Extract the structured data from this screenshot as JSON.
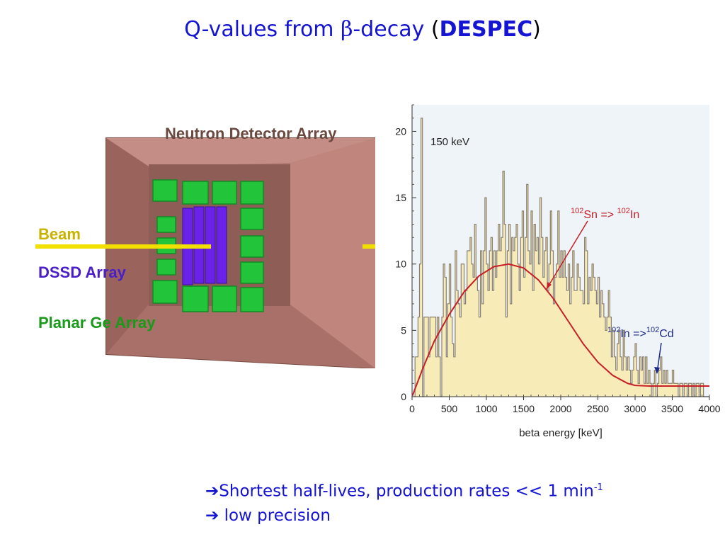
{
  "title": {
    "prefix": "Q-values from ",
    "beta": "β",
    "suffix": "-decay ",
    "open": "(",
    "bold": "DESPEC",
    "close": ")"
  },
  "detector": {
    "label_neutron": "Neutron Detector Array",
    "label_beam": "Beam",
    "label_dssd": "DSSD Array",
    "label_ge": "Planar Ge Array",
    "colors": {
      "box": "#b07a72",
      "ge": "#22c43a",
      "dssd": "#6b22e8",
      "beam": "#f2e000",
      "neutron_text": "#6a4a40",
      "dssd_text": "#4a1ec8",
      "ge_text": "#1a9a1a"
    }
  },
  "chart_data": {
    "type": "bar",
    "xlabel": "beta energy [keV]",
    "ylabel": "",
    "xlim": [
      0,
      4000
    ],
    "ylim": [
      0,
      22
    ],
    "xticks": [
      0,
      500,
      1000,
      1500,
      2000,
      2500,
      3000,
      3500,
      4000
    ],
    "yticks": [
      0,
      5,
      10,
      15,
      20
    ],
    "bin_width": 20,
    "hist_values": [
      0,
      0,
      3,
      3,
      6,
      10,
      21,
      0,
      6,
      6,
      6,
      3,
      6,
      6,
      6,
      6,
      3,
      6,
      3,
      0,
      6,
      10,
      9,
      3,
      7,
      10,
      6,
      4,
      3,
      11,
      8,
      7,
      6,
      10,
      10,
      7,
      8,
      11,
      11,
      12,
      10,
      9,
      13,
      9,
      8,
      6,
      11,
      7,
      11,
      15,
      10,
      8,
      11,
      12,
      8,
      11,
      9,
      11,
      13,
      11,
      12,
      17,
      13,
      6,
      11,
      13,
      7,
      12,
      11,
      12,
      13,
      10,
      8,
      12,
      14,
      9,
      12,
      16,
      11,
      10,
      14,
      8,
      13,
      11,
      12,
      10,
      15,
      12,
      9,
      11,
      12,
      8,
      10,
      14,
      11,
      7,
      9,
      10,
      14,
      9,
      11,
      9,
      11,
      9,
      8,
      10,
      7,
      9,
      11,
      8,
      8,
      10,
      9,
      8,
      8,
      7,
      12,
      11,
      7,
      9,
      8,
      10,
      9,
      8,
      7,
      9,
      6,
      8,
      7,
      6,
      5,
      6,
      8,
      6,
      3,
      5,
      3,
      2,
      4,
      5,
      3,
      2,
      5,
      3,
      2,
      3,
      2,
      1,
      2,
      3,
      4,
      2,
      1,
      3,
      2,
      3,
      1,
      3,
      1,
      2,
      1,
      0,
      1,
      2,
      0,
      1,
      2,
      3,
      1,
      2,
      1,
      2,
      1,
      1,
      1,
      2,
      1,
      1,
      1,
      0,
      1,
      1,
      0,
      1,
      1,
      0,
      1,
      1,
      0,
      1,
      0,
      1,
      1,
      0,
      1,
      1,
      0,
      0,
      0,
      0
    ],
    "fit_points": [
      [
        0,
        0
      ],
      [
        150,
        2.2
      ],
      [
        300,
        4.2
      ],
      [
        500,
        6.2
      ],
      [
        700,
        7.9
      ],
      [
        900,
        9.1
      ],
      [
        1100,
        9.8
      ],
      [
        1300,
        10
      ],
      [
        1500,
        9.7
      ],
      [
        1700,
        8.8
      ],
      [
        1900,
        7.4
      ],
      [
        2100,
        5.7
      ],
      [
        2300,
        4
      ],
      [
        2500,
        2.6
      ],
      [
        2700,
        1.6
      ],
      [
        2900,
        1.0
      ],
      [
        3000,
        0.85
      ],
      [
        3200,
        0.8
      ],
      [
        3500,
        0.8
      ],
      [
        3800,
        0.8
      ],
      [
        4000,
        0.8
      ]
    ],
    "annotations": {
      "peak": "150 keV",
      "sn_pre": "102",
      "sn_a": "Sn => ",
      "sn_pre2": "102",
      "sn_b": "In",
      "in_pre": "102",
      "in_a": "In =>",
      "in_pre2": "102",
      "in_b": "Cd"
    },
    "colors": {
      "hist_fill": "#f7ebb8",
      "hist_line": "#8a8070",
      "fit": "#c81e28",
      "annot_red": "#c81e28",
      "annot_blue": "#1e2a8a",
      "bg": "#eef4f8"
    }
  },
  "bullets": {
    "line1_arrow": "➔",
    "line1_text": "Shortest half-lives, production rates << 1 min",
    "line1_sup": "-1",
    "line2_arrow": "➔",
    "line2_text": " low precision"
  }
}
